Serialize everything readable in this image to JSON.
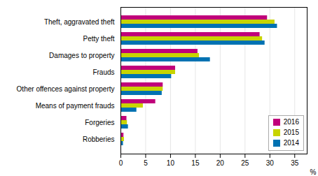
{
  "chart_data": {
    "type": "bar",
    "orientation": "horizontal",
    "categories": [
      "Robberies",
      "Forgeries",
      "Means of payment frauds",
      "Other offences against property",
      "Frauds",
      "Damages to property",
      "Petty theft",
      "Theft, aggravated theft"
    ],
    "series": [
      {
        "name": "2016",
        "color": "#c0007a",
        "values": [
          0.6,
          1.2,
          7.0,
          8.5,
          11.0,
          15.5,
          28.0,
          29.5
        ]
      },
      {
        "name": "2015",
        "color": "#c8d400",
        "values": [
          0.7,
          1.3,
          4.5,
          8.5,
          11.0,
          15.8,
          28.5,
          31.0
        ]
      },
      {
        "name": "2014",
        "color": "#0072b2",
        "values": [
          0.5,
          1.5,
          3.2,
          8.3,
          10.2,
          18.0,
          29.0,
          31.5
        ]
      }
    ],
    "xlabel": "%",
    "xlim": [
      0,
      37.5
    ],
    "xticks": [
      0,
      5,
      10,
      15,
      20,
      25,
      30,
      35
    ],
    "grid": true,
    "legend": "lower right"
  }
}
